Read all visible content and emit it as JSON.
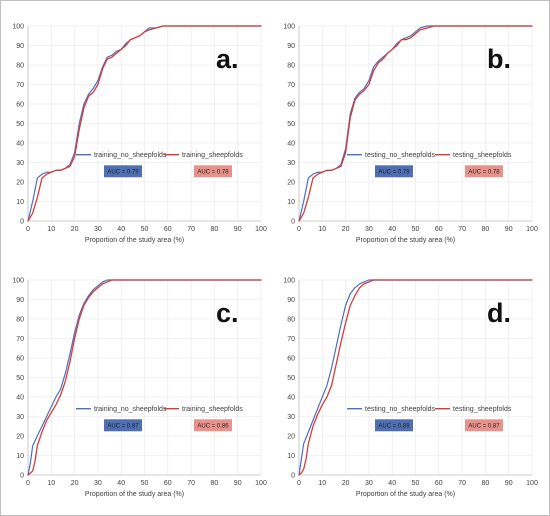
{
  "colors": {
    "blue": "#4a6fc7",
    "red": "#d63c37",
    "auc_blue_bg": "#4f6fb5",
    "auc_red_bg": "#e9928c"
  },
  "chart_data": [
    {
      "type": "line",
      "panel_label": "a.",
      "xlabel": "Proportion of the study area (%)",
      "xlim": [
        0,
        100
      ],
      "ylim": [
        0,
        100
      ],
      "xticks": [
        "0",
        "10",
        "20",
        "30",
        "40",
        "50",
        "60",
        "70",
        "80",
        "90",
        "100"
      ],
      "yticks": [
        "0",
        "10",
        "20",
        "30",
        "40",
        "50",
        "60",
        "70",
        "80",
        "90",
        "100"
      ],
      "legend_position": "center-right",
      "grid": true,
      "series": [
        {
          "name": "training_no_sheepfolds",
          "color": "#4a6fc7",
          "x": [
            0,
            2,
            4,
            6,
            8,
            10,
            12,
            14,
            16,
            18,
            20,
            22,
            24,
            26,
            28,
            30,
            32,
            34,
            36,
            38,
            40,
            42,
            44,
            46,
            48,
            50,
            52,
            55,
            58,
            60,
            65,
            70,
            80,
            90,
            100
          ],
          "y": [
            0,
            10,
            22,
            24,
            25,
            25,
            26,
            26,
            27,
            29,
            35,
            50,
            60,
            65,
            68,
            72,
            79,
            84,
            85,
            87,
            88,
            91,
            93,
            94,
            95,
            97,
            99,
            99,
            100,
            100,
            100,
            100,
            100,
            100,
            100
          ]
        },
        {
          "name": "training_sheepfolds",
          "color": "#d63c37",
          "x": [
            0,
            2,
            4,
            6,
            8,
            10,
            12,
            14,
            16,
            18,
            20,
            22,
            24,
            26,
            28,
            30,
            32,
            34,
            36,
            38,
            40,
            42,
            44,
            46,
            48,
            50,
            52,
            55,
            58,
            60,
            65,
            70,
            80,
            90,
            100
          ],
          "y": [
            0,
            4,
            12,
            22,
            24,
            25,
            26,
            26,
            27,
            28,
            33,
            47,
            58,
            64,
            66,
            70,
            78,
            83,
            84,
            86,
            88,
            90,
            93,
            94,
            95,
            97,
            98,
            99,
            100,
            100,
            100,
            100,
            100,
            100,
            100
          ]
        }
      ],
      "auc": [
        {
          "label": "AUC = 0.79",
          "series": "training_no_sheepfolds"
        },
        {
          "label": "AUC = 0.78",
          "series": "training_sheepfolds"
        }
      ]
    },
    {
      "type": "line",
      "panel_label": "b.",
      "xlabel": "Proportion of the study area (%)",
      "xlim": [
        0,
        100
      ],
      "ylim": [
        0,
        100
      ],
      "xticks": [
        "0",
        "10",
        "20",
        "30",
        "40",
        "50",
        "60",
        "70",
        "80",
        "90",
        "100"
      ],
      "yticks": [
        "0",
        "10",
        "20",
        "30",
        "40",
        "50",
        "60",
        "70",
        "80",
        "90",
        "100"
      ],
      "legend_position": "center-right",
      "grid": true,
      "series": [
        {
          "name": "testing_no_sheepfolds",
          "color": "#4a6fc7",
          "x": [
            0,
            2,
            4,
            6,
            8,
            10,
            12,
            14,
            16,
            18,
            20,
            22,
            24,
            26,
            28,
            30,
            32,
            34,
            36,
            38,
            40,
            42,
            44,
            46,
            48,
            50,
            52,
            55,
            58,
            60,
            65,
            70,
            80,
            90,
            100
          ],
          "y": [
            0,
            10,
            22,
            24,
            25,
            25,
            26,
            26,
            27,
            29,
            37,
            55,
            63,
            66,
            68,
            72,
            79,
            82,
            84,
            86,
            88,
            91,
            93,
            94,
            95,
            97,
            99,
            100,
            100,
            100,
            100,
            100,
            100,
            100,
            100
          ]
        },
        {
          "name": "testing_sheepfolds",
          "color": "#d63c37",
          "x": [
            0,
            2,
            4,
            6,
            8,
            10,
            12,
            14,
            16,
            18,
            20,
            22,
            24,
            26,
            28,
            30,
            32,
            34,
            36,
            38,
            40,
            42,
            44,
            46,
            48,
            50,
            52,
            55,
            58,
            60,
            65,
            70,
            80,
            90,
            100
          ],
          "y": [
            0,
            4,
            12,
            22,
            24,
            25,
            26,
            26,
            27,
            28,
            35,
            53,
            62,
            65,
            67,
            70,
            77,
            81,
            83,
            86,
            88,
            90,
            93,
            93,
            94,
            96,
            98,
            99,
            100,
            100,
            100,
            100,
            100,
            100,
            100
          ]
        }
      ],
      "auc": [
        {
          "label": "AUC = 0.79",
          "series": "testing_no_sheepfolds"
        },
        {
          "label": "AUC = 0.78",
          "series": "testing_sheepfolds"
        }
      ]
    },
    {
      "type": "line",
      "panel_label": "c.",
      "xlabel": "Proportion of the study area (%)",
      "xlim": [
        0,
        100
      ],
      "ylim": [
        0,
        100
      ],
      "xticks": [
        "0",
        "10",
        "20",
        "30",
        "40",
        "50",
        "60",
        "70",
        "80",
        "90",
        "100"
      ],
      "yticks": [
        "0",
        "10",
        "20",
        "30",
        "40",
        "50",
        "60",
        "70",
        "80",
        "90",
        "100"
      ],
      "legend_position": "center-right",
      "grid": true,
      "series": [
        {
          "name": "training_no_sheepfolds",
          "color": "#4a6fc7",
          "x": [
            0,
            1,
            2,
            4,
            6,
            8,
            10,
            12,
            14,
            16,
            18,
            20,
            22,
            24,
            26,
            28,
            30,
            32,
            34,
            36,
            40,
            50,
            60,
            70,
            80,
            90,
            100
          ],
          "y": [
            0,
            6,
            15,
            20,
            25,
            30,
            35,
            40,
            44,
            52,
            62,
            73,
            82,
            88,
            92,
            95,
            97,
            99,
            100,
            100,
            100,
            100,
            100,
            100,
            100,
            100,
            100
          ]
        },
        {
          "name": "training_sheepfolds",
          "color": "#d63c37",
          "x": [
            0,
            1,
            2,
            3,
            4,
            6,
            8,
            10,
            12,
            14,
            16,
            18,
            20,
            22,
            24,
            26,
            28,
            30,
            32,
            34,
            36,
            40,
            50,
            60,
            70,
            80,
            90,
            100
          ],
          "y": [
            0,
            1,
            2,
            7,
            15,
            22,
            28,
            32,
            36,
            41,
            48,
            58,
            70,
            80,
            87,
            91,
            94,
            96,
            98,
            99,
            100,
            100,
            100,
            100,
            100,
            100,
            100,
            100
          ]
        }
      ],
      "auc": [
        {
          "label": "AUC = 0.87",
          "series": "training_no_sheepfolds"
        },
        {
          "label": "AUC = 0.86",
          "series": "training_sheepfolds"
        }
      ]
    },
    {
      "type": "line",
      "panel_label": "d.",
      "xlabel": "Proportion of the study area (%)",
      "xlim": [
        0,
        100
      ],
      "ylim": [
        0,
        100
      ],
      "xticks": [
        "0",
        "10",
        "20",
        "30",
        "40",
        "50",
        "60",
        "70",
        "80",
        "90",
        "100"
      ],
      "yticks": [
        "0",
        "10",
        "20",
        "30",
        "40",
        "50",
        "60",
        "70",
        "80",
        "90",
        "100"
      ],
      "legend_position": "center-right",
      "grid": true,
      "series": [
        {
          "name": "testing_no_sheepfolds",
          "color": "#4a6fc7",
          "x": [
            0,
            1,
            2,
            4,
            6,
            8,
            10,
            12,
            14,
            16,
            18,
            20,
            22,
            24,
            26,
            28,
            30,
            32,
            34,
            40,
            50,
            60,
            70,
            80,
            90,
            100
          ],
          "y": [
            0,
            8,
            16,
            22,
            28,
            34,
            40,
            46,
            55,
            66,
            77,
            87,
            93,
            96,
            98,
            99,
            100,
            100,
            100,
            100,
            100,
            100,
            100,
            100,
            100,
            100
          ]
        },
        {
          "name": "testing_sheepfolds",
          "color": "#d63c37",
          "x": [
            0,
            1,
            2,
            3,
            4,
            6,
            8,
            10,
            12,
            14,
            16,
            18,
            20,
            22,
            24,
            26,
            28,
            30,
            32,
            34,
            40,
            50,
            60,
            70,
            80,
            90,
            100
          ],
          "y": [
            0,
            1,
            3,
            8,
            16,
            25,
            31,
            36,
            40,
            46,
            57,
            68,
            78,
            87,
            92,
            96,
            98,
            99,
            100,
            100,
            100,
            100,
            100,
            100,
            100,
            100,
            100
          ]
        }
      ],
      "auc": [
        {
          "label": "AUC = 0.89",
          "series": "testing_no_sheepfolds"
        },
        {
          "label": "AUC = 0.87",
          "series": "testing_sheepfolds"
        }
      ]
    }
  ]
}
